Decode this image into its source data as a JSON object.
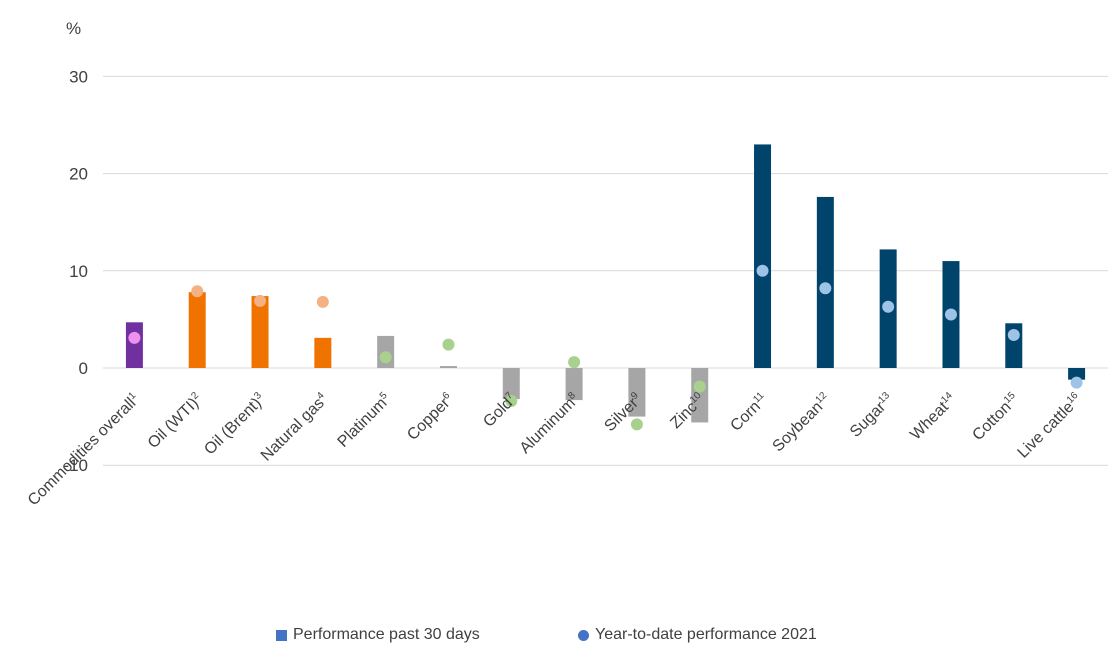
{
  "chart_data": {
    "type": "bar",
    "unit_label": "%",
    "ylim": [
      -10,
      30
    ],
    "yticks": [
      -10,
      0,
      10,
      20,
      30
    ],
    "grid": true,
    "legend_position": "bottom",
    "categories": [
      {
        "name": "Commodities overall",
        "sup": "1"
      },
      {
        "name": "Oil (WTI)",
        "sup": "2"
      },
      {
        "name": "Oil (Brent)",
        "sup": "3"
      },
      {
        "name": "Natural gas",
        "sup": "4"
      },
      {
        "name": "Platinum",
        "sup": "5"
      },
      {
        "name": "Copper",
        "sup": "6"
      },
      {
        "name": "Gold",
        "sup": "7"
      },
      {
        "name": "Aluminum",
        "sup": "8"
      },
      {
        "name": "Silver",
        "sup": "9"
      },
      {
        "name": "Zinc",
        "sup": "10"
      },
      {
        "name": "Corn",
        "sup": "11"
      },
      {
        "name": "Soybean",
        "sup": "12"
      },
      {
        "name": "Sugar",
        "sup": "13"
      },
      {
        "name": "Wheat",
        "sup": "14"
      },
      {
        "name": "Cotton",
        "sup": "15"
      },
      {
        "name": "Live cattle",
        "sup": "16"
      }
    ],
    "series": [
      {
        "name": "Performance past 30 days",
        "kind": "bar",
        "values": [
          4.7,
          7.8,
          7.4,
          3.1,
          3.3,
          0.2,
          -3.2,
          -3.3,
          -5.0,
          -5.6,
          23.0,
          17.6,
          12.2,
          11.0,
          4.6,
          -1.2
        ]
      },
      {
        "name": "Year-to-date performance 2021",
        "kind": "dot",
        "values": [
          3.1,
          7.9,
          6.9,
          6.8,
          1.1,
          2.4,
          -3.4,
          0.6,
          -5.8,
          -1.9,
          10.0,
          8.2,
          6.3,
          5.5,
          3.4,
          -1.5
        ]
      }
    ],
    "bar_colors": [
      "#7030a0",
      "#f07300",
      "#f07300",
      "#f07300",
      "#a6a6a6",
      "#a6a6a6",
      "#a6a6a6",
      "#a6a6a6",
      "#a6a6a6",
      "#a6a6a6",
      "#00446c",
      "#00446c",
      "#00446c",
      "#00446c",
      "#00446c",
      "#00446c"
    ],
    "dot_colors": [
      "#ee90ee",
      "#f4b183",
      "#f4b183",
      "#f4b183",
      "#a9d18e",
      "#a9d18e",
      "#a9d18e",
      "#a9d18e",
      "#a9d18e",
      "#a9d18e",
      "#9dc3e6",
      "#9dc3e6",
      "#9dc3e6",
      "#9dc3e6",
      "#9dc3e6",
      "#9dc3e6"
    ],
    "legend_color": "#4472c4"
  }
}
